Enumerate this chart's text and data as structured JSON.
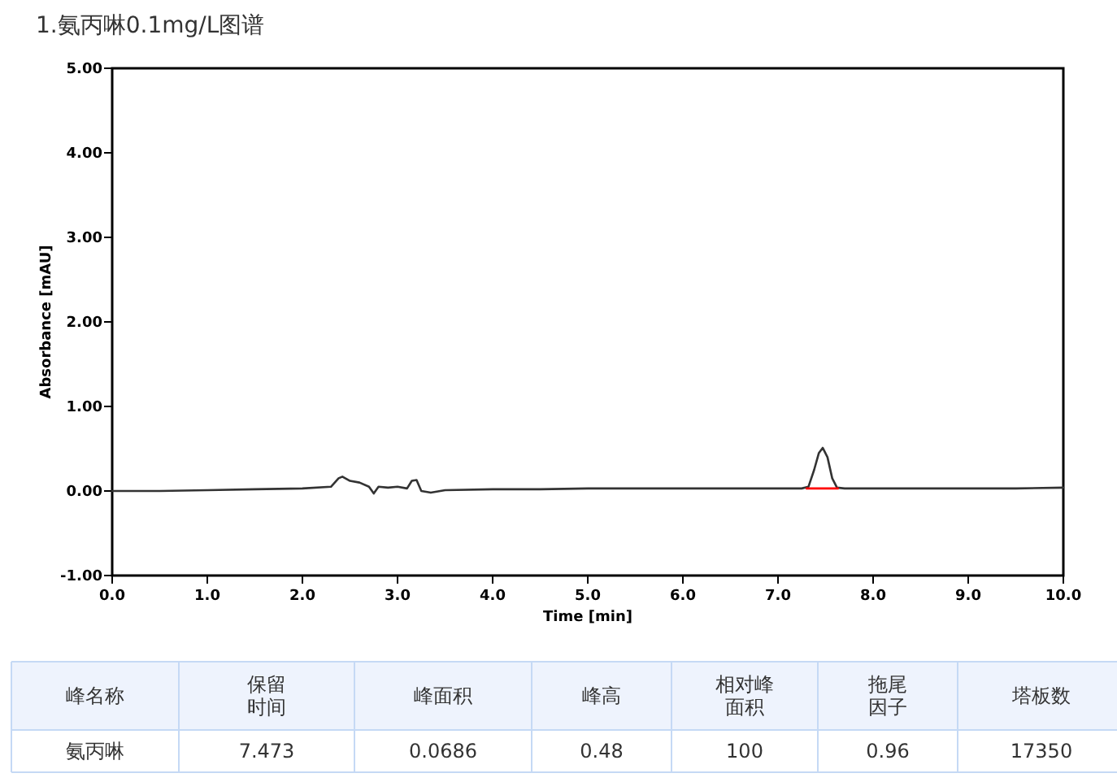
{
  "chart_data": {
    "type": "line",
    "title": "1.氨丙啉0.1mg/L图谱",
    "xlabel": "Time [min]",
    "ylabel": "Absorbance [mAU]",
    "xlim": [
      0,
      10
    ],
    "xticks": [
      {
        "value": 0,
        "label": "0.0"
      },
      {
        "value": 1,
        "label": "1.0"
      },
      {
        "value": 2,
        "label": "2.0"
      },
      {
        "value": 3,
        "label": "3.0"
      },
      {
        "value": 4,
        "label": "4.0"
      },
      {
        "value": 5,
        "label": "5.0"
      },
      {
        "value": 6,
        "label": "6.0"
      },
      {
        "value": 7,
        "label": "7.0"
      },
      {
        "value": 8,
        "label": "8.0"
      },
      {
        "value": 9,
        "label": "9.0"
      },
      {
        "value": 10,
        "label": "10.0"
      }
    ],
    "ylim": [
      -1,
      5
    ],
    "yticks": [
      {
        "value": -1,
        "label": "-1.00"
      },
      {
        "value": 0,
        "label": "0.00"
      },
      {
        "value": 1,
        "label": "1.00"
      },
      {
        "value": 2,
        "label": "2.00"
      },
      {
        "value": 3,
        "label": "3.00"
      },
      {
        "value": 4,
        "label": "4.00"
      },
      {
        "value": 5,
        "label": "5.00"
      }
    ],
    "series": [
      {
        "color": "#333333",
        "x": [
          0,
          0.5,
          1,
          1.5,
          2,
          2.3,
          2.38,
          2.42,
          2.5,
          2.6,
          2.7,
          2.75,
          2.8,
          2.9,
          3.0,
          3.1,
          3.15,
          3.2,
          3.25,
          3.35,
          3.5,
          4,
          4.5,
          5,
          5.5,
          6,
          6.5,
          7,
          7.25,
          7.32,
          7.38,
          7.43,
          7.47,
          7.52,
          7.57,
          7.62,
          7.7,
          8,
          8.5,
          9,
          9.5,
          10
        ],
        "values": [
          0,
          0,
          0.01,
          0.02,
          0.03,
          0.05,
          0.15,
          0.17,
          0.12,
          0.1,
          0.05,
          -0.03,
          0.05,
          0.04,
          0.05,
          0.03,
          0.12,
          0.13,
          0,
          -0.02,
          0.01,
          0.02,
          0.02,
          0.03,
          0.03,
          0.03,
          0.03,
          0.03,
          0.03,
          0.05,
          0.25,
          0.45,
          0.51,
          0.4,
          0.15,
          0.04,
          0.03,
          0.03,
          0.03,
          0.03,
          0.03,
          0.04
        ]
      },
      {
        "color": "#ff0000",
        "x": [
          7.3,
          7.63
        ],
        "values": [
          0.03,
          0.03
        ]
      }
    ],
    "grid": false,
    "marker": "none",
    "line_style": "solid",
    "annotations": [
      "峰名称",
      "保留时间",
      "峰面积",
      "峰高",
      "相对峰面积",
      "拖尾因子",
      "塔板数",
      "氨丙啉",
      "7.473",
      "0.0686",
      "0.48",
      "100",
      "0.96",
      "17350"
    ]
  }
}
